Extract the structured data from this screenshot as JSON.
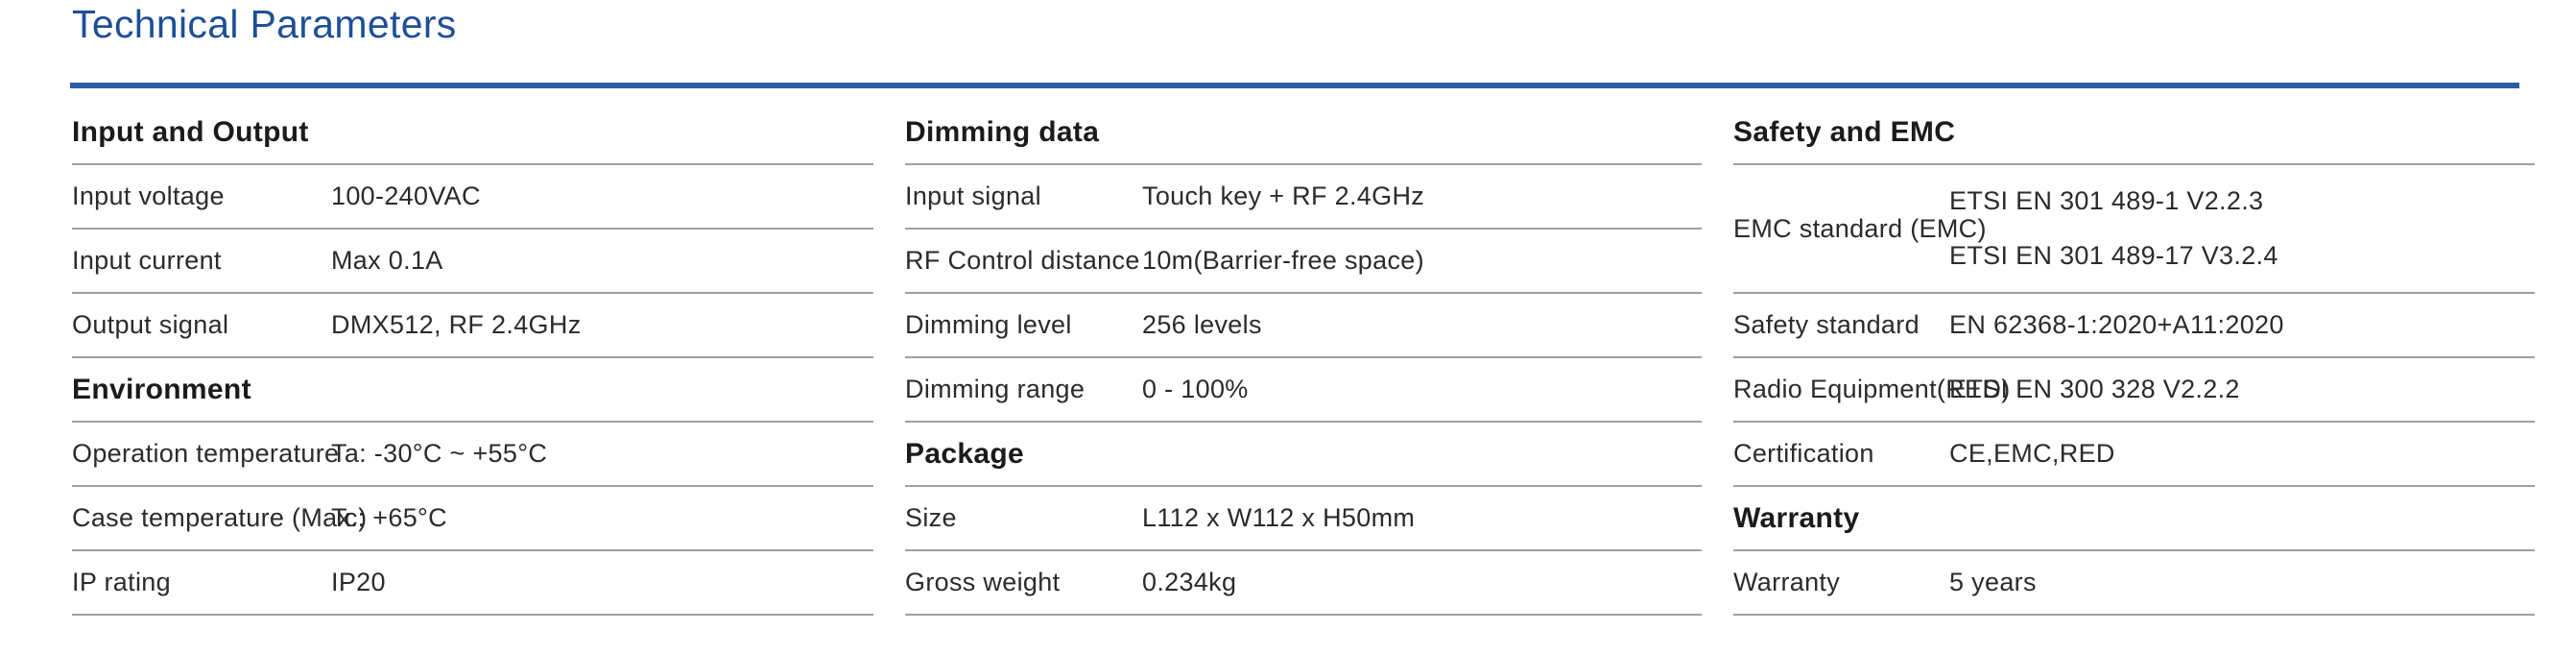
{
  "page": {
    "title": "Technical Parameters"
  },
  "colors": {
    "accent": "#1e4f96",
    "rule": "#2d5ca6",
    "divider": "#a0a0a0",
    "text": "#2d2a2b"
  },
  "columns": [
    {
      "name": "input-and-output",
      "sections": [
        {
          "heading": "Input and Output",
          "rows": [
            {
              "label": "Input voltage",
              "value": "100-240VAC"
            },
            {
              "label": "Input current",
              "value": "Max 0.1A"
            },
            {
              "label": "Output signal",
              "value": "DMX512, RF 2.4GHz"
            }
          ]
        },
        {
          "heading": "Environment",
          "rows": [
            {
              "label": "Operation temperature",
              "value": "Ta: -30°C ~ +55°C"
            },
            {
              "label": "Case temperature (Max.)",
              "value": "Tc: +65°C"
            },
            {
              "label": "IP rating",
              "value": "IP20"
            }
          ]
        }
      ]
    },
    {
      "name": "dimming-and-package",
      "sections": [
        {
          "heading": "Dimming data",
          "rows": [
            {
              "label": "Input signal",
              "value": "Touch key + RF 2.4GHz"
            },
            {
              "label": "RF Control distance",
              "value": "10m(Barrier-free space)"
            },
            {
              "label": "Dimming level",
              "value": "256 levels"
            },
            {
              "label": "Dimming range",
              "value": "0 - 100%"
            }
          ]
        },
        {
          "heading": "Package",
          "rows": [
            {
              "label": "Size",
              "value": "L112 x W112 x H50mm"
            },
            {
              "label": "Gross weight",
              "value": "0.234kg"
            }
          ]
        }
      ]
    },
    {
      "name": "safety-and-warranty",
      "sections": [
        {
          "heading": "Safety and EMC",
          "rows": [
            {
              "label": "EMC standard (EMC)",
              "value_lines": [
                "ETSI EN 301 489-1 V2.2.3",
                "ETSI EN 301 489-17 V3.2.4"
              ]
            },
            {
              "label": "Safety standard",
              "value": "EN 62368-1:2020+A11:2020"
            },
            {
              "label": "Radio Equipment(RED)",
              "value": "ETSI EN 300 328 V2.2.2"
            },
            {
              "label": "Certification",
              "value": "CE,EMC,RED"
            }
          ]
        },
        {
          "heading": "Warranty",
          "rows": [
            {
              "label": "Warranty",
              "value": "5 years"
            }
          ]
        }
      ]
    }
  ]
}
